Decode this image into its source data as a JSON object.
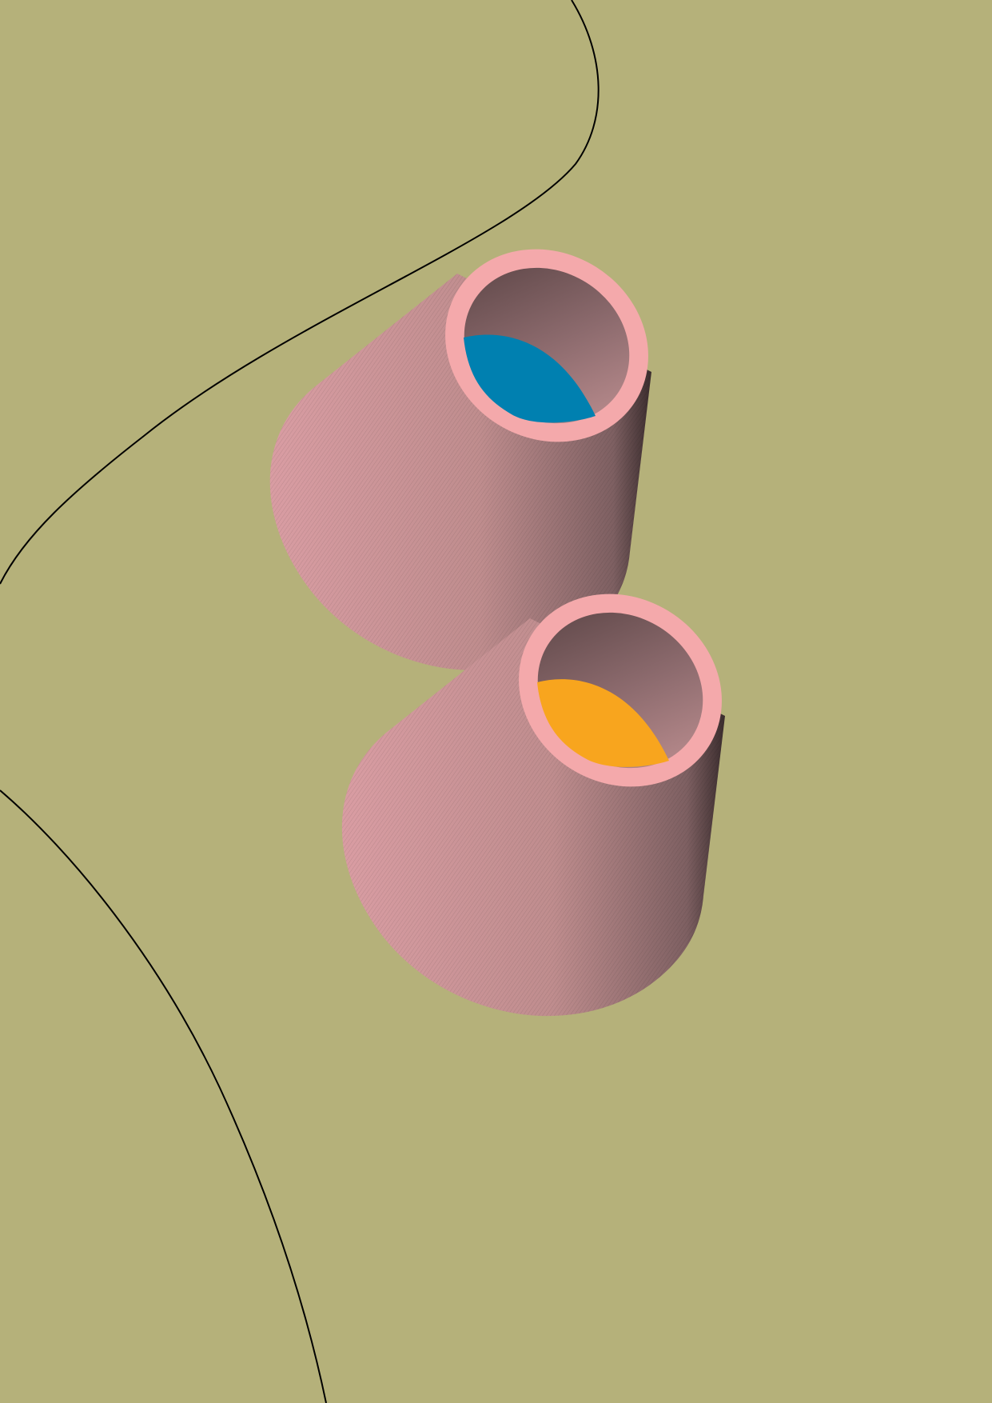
{
  "artwork": {
    "colors": {
      "background": "#b5b17a",
      "line": "#000000",
      "cone_body_light": "#d69aa0",
      "cone_body_dark": "#8e6a6d",
      "rim": "#f4a9ab",
      "inner_upper": "#0080b0",
      "inner_lower": "#f8a51e"
    }
  }
}
